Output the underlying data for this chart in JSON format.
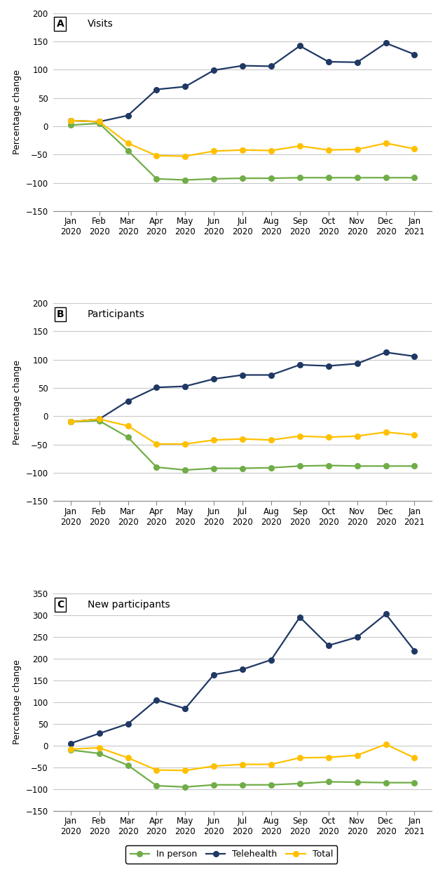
{
  "x_labels": [
    "Jan\n2020",
    "Feb\n2020",
    "Mar\n2020",
    "Apr\n2020",
    "May\n2020",
    "Jun\n2020",
    "Jul\n2020",
    "Aug\n2020",
    "Sep\n2020",
    "Oct\n2020",
    "Nov\n2020",
    "Dec\n2020",
    "Jan\n2021"
  ],
  "panel_A": {
    "title": "Visits",
    "label": "A",
    "ylim": [
      -150,
      200
    ],
    "yticks": [
      -150,
      -100,
      -50,
      0,
      50,
      100,
      150,
      200
    ],
    "telehealth": [
      10,
      8,
      19,
      65,
      70,
      99,
      107,
      106,
      142,
      114,
      113,
      147,
      127
    ],
    "in_person": [
      2,
      5,
      -43,
      -93,
      -95,
      -93,
      -92,
      -92,
      -91,
      -91,
      -91,
      -91,
      -91
    ],
    "total": [
      10,
      8,
      -30,
      -52,
      -53,
      -44,
      -42,
      -43,
      -35,
      -42,
      -41,
      -30,
      -40
    ]
  },
  "panel_B": {
    "title": "Participants",
    "label": "B",
    "ylim": [
      -150,
      200
    ],
    "yticks": [
      -150,
      -100,
      -50,
      0,
      50,
      100,
      150,
      200
    ],
    "telehealth": [
      -10,
      -5,
      27,
      51,
      53,
      66,
      73,
      73,
      91,
      89,
      93,
      113,
      106
    ],
    "in_person": [
      -10,
      -8,
      -37,
      -90,
      -95,
      -92,
      -92,
      -91,
      -88,
      -87,
      -88,
      -88,
      -88
    ],
    "total": [
      -10,
      -5,
      -17,
      -49,
      -49,
      -42,
      -40,
      -42,
      -35,
      -37,
      -35,
      -28,
      -33
    ]
  },
  "panel_C": {
    "title": "New participants",
    "label": "C",
    "ylim": [
      -150,
      350
    ],
    "yticks": [
      -150,
      -100,
      -50,
      0,
      50,
      100,
      150,
      200,
      250,
      300,
      350
    ],
    "telehealth": [
      5,
      28,
      50,
      105,
      85,
      163,
      175,
      197,
      295,
      230,
      249,
      302,
      218
    ],
    "in_person": [
      -10,
      -18,
      -45,
      -92,
      -95,
      -90,
      -90,
      -90,
      -87,
      -83,
      -84,
      -85,
      -85
    ],
    "total": [
      -8,
      -5,
      -28,
      -56,
      -57,
      -47,
      -43,
      -43,
      -28,
      -27,
      -22,
      3,
      -28
    ]
  },
  "colors": {
    "telehealth": "#1f3864",
    "in_person": "#70ad47",
    "total": "#ffc000"
  },
  "ylabel": "Percentage change",
  "marker": "o",
  "markersize": 5.5,
  "linewidth": 1.6,
  "grid_color": "#c8c8c8",
  "spine_color": "#888888",
  "tick_fontsize": 8.5,
  "label_fontsize": 10,
  "ylabel_fontsize": 9,
  "legend_fontsize": 9
}
